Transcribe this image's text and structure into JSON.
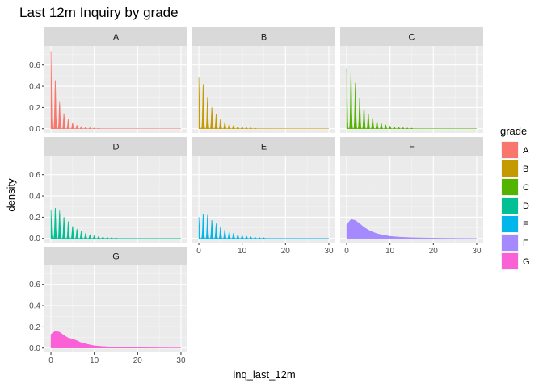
{
  "chart_data": {
    "type": "area",
    "title": "Last 12m Inquiry by grade",
    "xlabel": "inq_last_12m",
    "ylabel": "density",
    "xlim": [
      -1.5,
      31.5
    ],
    "ylim": [
      -0.04,
      0.78
    ],
    "x_ticks": [
      0,
      10,
      20,
      30
    ],
    "y_ticks": [
      0.0,
      0.2,
      0.4,
      0.6
    ],
    "y_tick_labels": [
      "0.0",
      "0.2",
      "0.4",
      "0.6"
    ],
    "grid": true,
    "facet_ncol": 3,
    "legend": {
      "title": "grade",
      "position": "right"
    },
    "series": [
      {
        "name": "A",
        "color": "#F8766D",
        "shape": "spiky",
        "peaks": [
          0.73,
          0.48,
          0.26,
          0.15,
          0.09,
          0.055,
          0.035,
          0.022,
          0.015,
          0.01,
          0.007,
          0.005
        ]
      },
      {
        "name": "B",
        "color": "#C49A00",
        "shape": "spiky",
        "peaks": [
          0.48,
          0.44,
          0.3,
          0.21,
          0.14,
          0.095,
          0.065,
          0.045,
          0.032,
          0.022,
          0.016,
          0.011,
          0.008,
          0.006
        ]
      },
      {
        "name": "C",
        "color": "#53B400",
        "shape": "spiky",
        "peaks": [
          0.57,
          0.56,
          0.43,
          0.3,
          0.21,
          0.15,
          0.105,
          0.075,
          0.053,
          0.038,
          0.027,
          0.02,
          0.015,
          0.011,
          0.008,
          0.006
        ]
      },
      {
        "name": "D",
        "color": "#00C094",
        "shape": "spiky",
        "peaks": [
          0.27,
          0.3,
          0.27,
          0.21,
          0.16,
          0.12,
          0.09,
          0.068,
          0.05,
          0.037,
          0.028,
          0.02,
          0.015,
          0.011,
          0.008,
          0.006
        ]
      },
      {
        "name": "E",
        "color": "#00B6EB",
        "shape": "spiky",
        "peaks": [
          0.2,
          0.24,
          0.22,
          0.18,
          0.14,
          0.11,
          0.085,
          0.065,
          0.05,
          0.038,
          0.029,
          0.022,
          0.016,
          0.012,
          0.009,
          0.007
        ]
      },
      {
        "name": "F",
        "color": "#A58AFF",
        "shape": "smooth",
        "x": [
          0,
          1,
          2,
          3,
          4,
          5,
          6,
          7,
          8,
          9,
          10,
          12,
          14,
          16,
          20,
          25,
          30
        ],
        "y": [
          0.13,
          0.18,
          0.17,
          0.14,
          0.105,
          0.08,
          0.06,
          0.045,
          0.035,
          0.027,
          0.02,
          0.013,
          0.009,
          0.006,
          0.003,
          0.001,
          0.0
        ]
      },
      {
        "name": "G",
        "color": "#FB61D7",
        "shape": "smooth",
        "x": [
          0,
          1,
          2,
          3,
          4,
          5,
          6,
          7,
          8,
          9,
          10,
          12,
          14,
          16,
          20,
          25,
          30
        ],
        "y": [
          0.13,
          0.16,
          0.15,
          0.12,
          0.095,
          0.085,
          0.07,
          0.05,
          0.04,
          0.03,
          0.022,
          0.015,
          0.01,
          0.007,
          0.004,
          0.002,
          0.001
        ]
      }
    ]
  }
}
